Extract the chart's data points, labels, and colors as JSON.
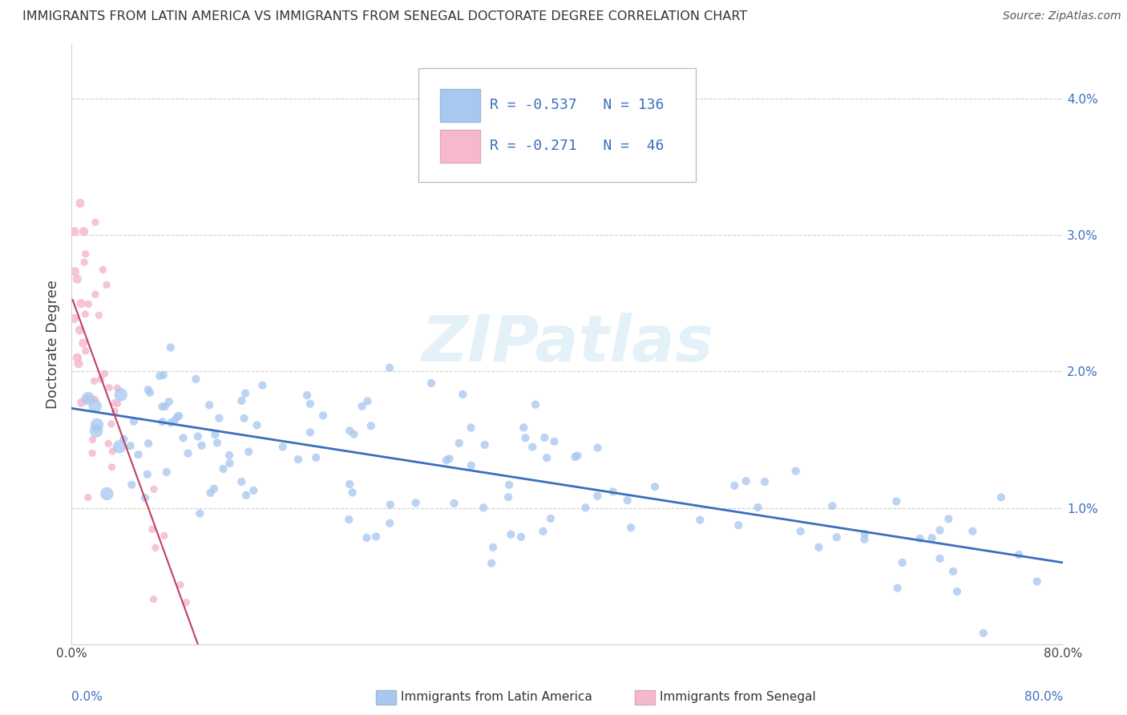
{
  "title": "IMMIGRANTS FROM LATIN AMERICA VS IMMIGRANTS FROM SENEGAL DOCTORATE DEGREE CORRELATION CHART",
  "source": "Source: ZipAtlas.com",
  "ylabel": "Doctorate Degree",
  "xmin": 0.0,
  "xmax": 80.0,
  "ymin": 0.0,
  "ymax": 4.4,
  "legend_blue_r": "R = -0.537",
  "legend_blue_n": "N = 136",
  "legend_pink_r": "R = -0.271",
  "legend_pink_n": "N =  46",
  "legend_blue_label": "Immigrants from Latin America",
  "legend_pink_label": "Immigrants from Senegal",
  "blue_color": "#a8c8f0",
  "pink_color": "#f5b8cc",
  "blue_line_color": "#3a6fbe",
  "pink_line_color": "#c04060",
  "pink_line_dash_color": "#d08090",
  "legend_text_color": "#3a6fbe",
  "watermark": "ZIPatlas",
  "blue_n": 136,
  "pink_n": 46,
  "blue_intercept": 1.73,
  "blue_slope": -0.01415,
  "pink_intercept": 2.55,
  "pink_slope": -0.25,
  "background_color": "#ffffff",
  "grid_color": "#d0d0d0",
  "title_fontsize": 11.5,
  "source_fontsize": 10,
  "tick_fontsize": 11,
  "legend_fontsize": 13
}
